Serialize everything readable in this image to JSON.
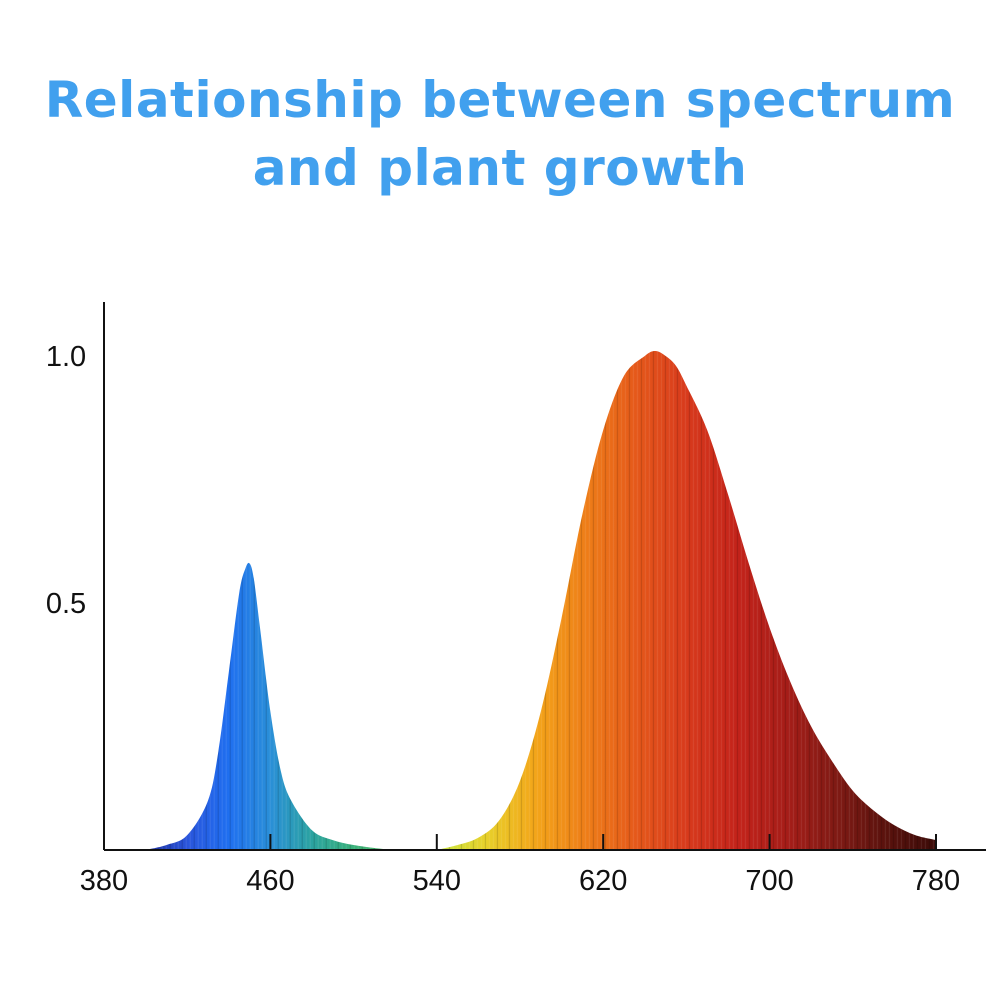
{
  "chart_data": {
    "type": "area",
    "title_lines": [
      "Relationship between spectrum",
      "and plant growth"
    ],
    "xlabel": "",
    "ylabel": "",
    "xlim": [
      380,
      780
    ],
    "ylim": [
      0,
      1.0
    ],
    "x_ticks": [
      380,
      460,
      540,
      620,
      700,
      780
    ],
    "x_tick_labels": [
      "380",
      "460",
      "540",
      "620",
      "700",
      "780"
    ],
    "y_ticks": [
      0.5,
      1.0
    ],
    "y_tick_labels": [
      "0.5",
      "1.0"
    ],
    "grid": false,
    "legend": "none",
    "series": [
      {
        "x": [
          400,
          410,
          420,
          430,
          435,
          440,
          445,
          448,
          450,
          452,
          455,
          460,
          465,
          470,
          480,
          490,
          500,
          510,
          520
        ],
        "y": [
          0.0,
          0.01,
          0.03,
          0.1,
          0.2,
          0.36,
          0.52,
          0.57,
          0.58,
          0.55,
          0.45,
          0.28,
          0.16,
          0.1,
          0.04,
          0.02,
          0.01,
          0.004,
          0.0
        ],
        "color_stops": [
          "#1c2f9c",
          "#2a55dc",
          "#1f6ff0",
          "#2a8fd8",
          "#2ba3a0",
          "#39b07a",
          "#52b868"
        ]
      },
      {
        "x": [
          540,
          550,
          560,
          570,
          580,
          590,
          600,
          610,
          620,
          630,
          640,
          645,
          650,
          655,
          660,
          670,
          680,
          690,
          700,
          710,
          720,
          730,
          740,
          750,
          760,
          770,
          780
        ],
        "y": [
          0.0,
          0.01,
          0.025,
          0.06,
          0.14,
          0.28,
          0.47,
          0.68,
          0.85,
          0.96,
          1.0,
          1.01,
          1.0,
          0.98,
          0.94,
          0.85,
          0.72,
          0.58,
          0.45,
          0.34,
          0.25,
          0.18,
          0.12,
          0.08,
          0.05,
          0.03,
          0.02
        ],
        "color_stops": [
          "#c8e640",
          "#e8d02a",
          "#f3a419",
          "#ee7d18",
          "#e5581a",
          "#d83a1c",
          "#c4231a",
          "#a61d18",
          "#801a14",
          "#5a120d",
          "#3c0b08"
        ]
      }
    ]
  }
}
